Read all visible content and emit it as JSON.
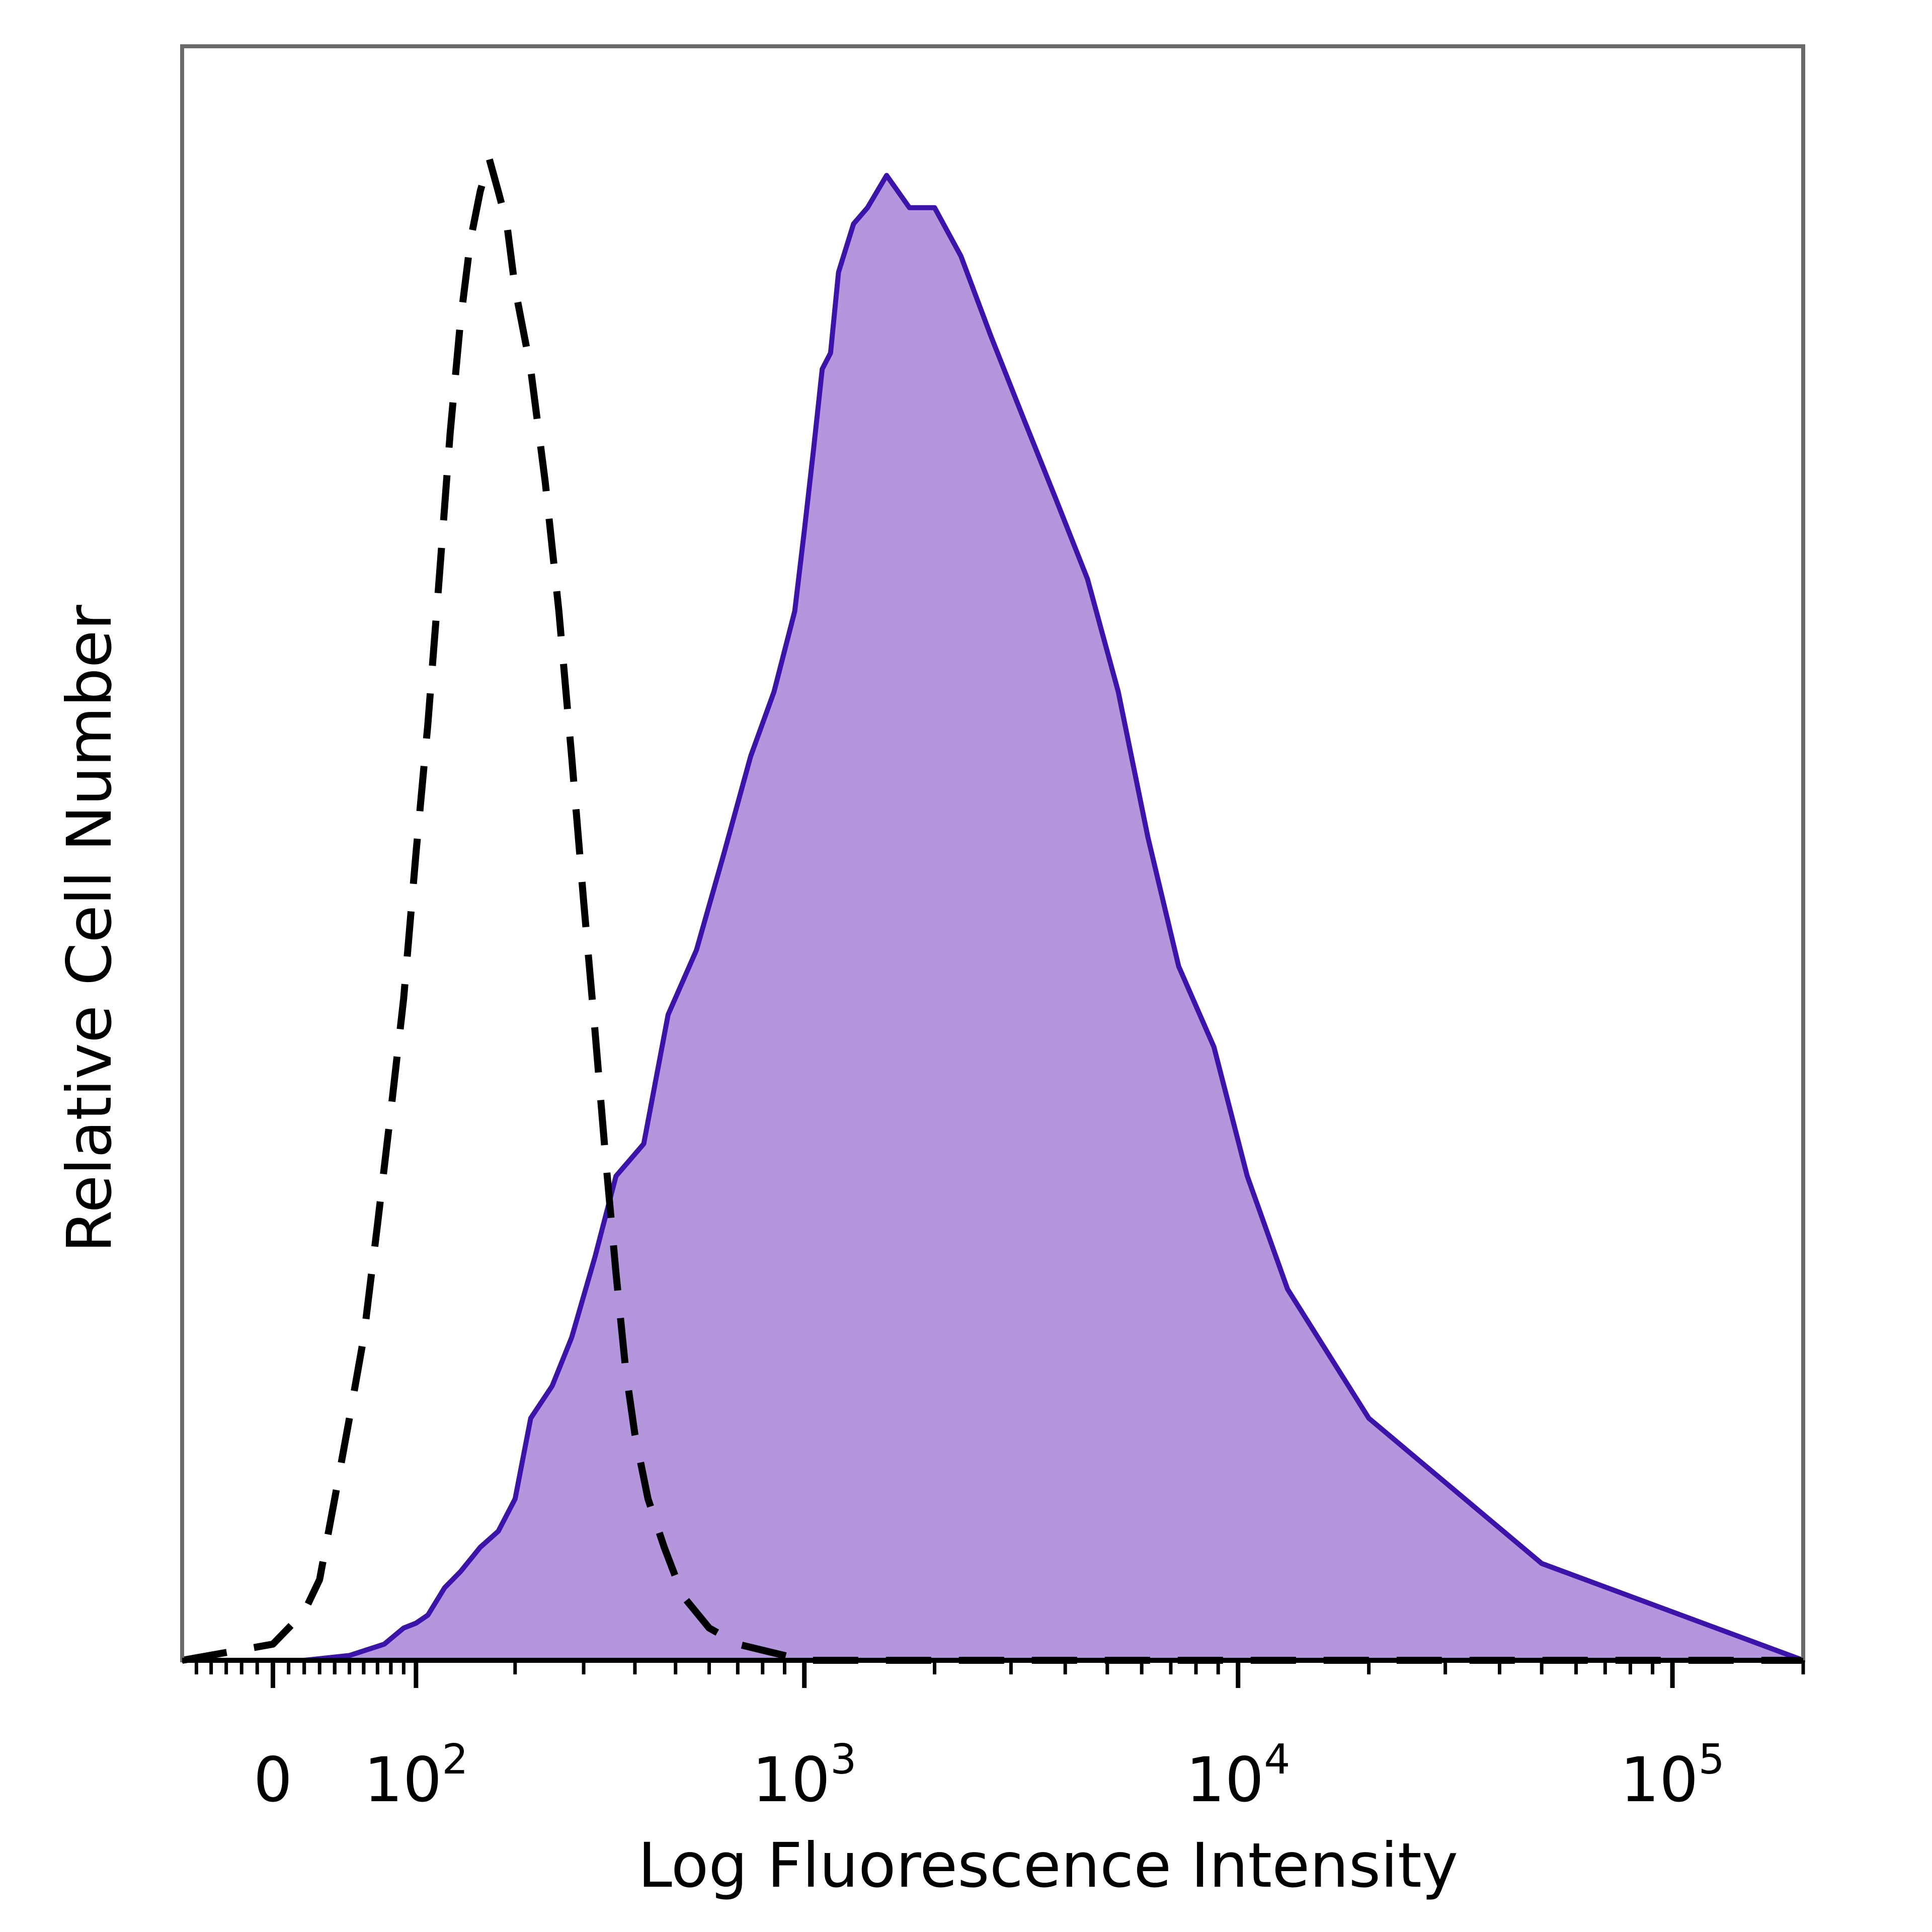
{
  "chart_data": {
    "type": "area",
    "xlabel": "Log Fluorescence Intensity",
    "ylabel": "Relative Cell Number",
    "x_scale": "biexponential",
    "x_ticks": [
      {
        "value": 0,
        "base": "0",
        "exp": ""
      },
      {
        "value": 100,
        "base": "10",
        "exp": "2"
      },
      {
        "value": 1000,
        "base": "10",
        "exp": "3"
      },
      {
        "value": 10000,
        "base": "10",
        "exp": "4"
      },
      {
        "value": 100000,
        "base": "10",
        "exp": "5"
      }
    ],
    "xlim": [
      -60,
      200000
    ],
    "ylim": [
      0,
      1
    ],
    "grid": false,
    "series": [
      {
        "style": "filled",
        "color": "#b496dc",
        "line_color": "#3c14aa",
        "x": [
          -60,
          20,
          50,
          75,
          90,
          100,
          110,
          125,
          140,
          160,
          180,
          200,
          220,
          250,
          280,
          320,
          360,
          420,
          480,
          560,
          650,
          750,
          850,
          950,
          1000,
          1050,
          1100,
          1150,
          1200,
          1300,
          1400,
          1550,
          1750,
          2000,
          2300,
          2700,
          3200,
          3800,
          4500,
          5300,
          6200,
          7300,
          8800,
          10500,
          13000,
          20000,
          50000,
          200000
        ],
        "values": [
          0.0,
          0.0,
          0.003,
          0.01,
          0.02,
          0.023,
          0.028,
          0.045,
          0.055,
          0.07,
          0.08,
          0.1,
          0.15,
          0.17,
          0.2,
          0.25,
          0.3,
          0.32,
          0.4,
          0.44,
          0.5,
          0.56,
          0.6,
          0.65,
          0.7,
          0.75,
          0.8,
          0.81,
          0.86,
          0.89,
          0.9,
          0.92,
          0.9,
          0.9,
          0.87,
          0.82,
          0.77,
          0.72,
          0.67,
          0.6,
          0.51,
          0.43,
          0.38,
          0.3,
          0.23,
          0.15,
          0.06,
          0.0
        ]
      },
      {
        "style": "dashed",
        "color": "#000000",
        "x": [
          -60,
          0,
          20,
          30,
          40,
          50,
          60,
          70,
          80,
          90,
          100,
          110,
          120,
          130,
          140,
          150,
          160,
          170,
          180,
          190,
          200,
          220,
          240,
          260,
          280,
          300,
          320,
          340,
          360,
          380,
          400,
          430,
          470,
          520,
          600,
          700,
          1000,
          200000
        ],
        "values": [
          0.0,
          0.01,
          0.03,
          0.05,
          0.1,
          0.15,
          0.2,
          0.27,
          0.34,
          0.41,
          0.5,
          0.58,
          0.67,
          0.76,
          0.83,
          0.88,
          0.91,
          0.93,
          0.91,
          0.89,
          0.85,
          0.8,
          0.73,
          0.65,
          0.56,
          0.47,
          0.39,
          0.31,
          0.24,
          0.18,
          0.14,
          0.1,
          0.07,
          0.04,
          0.02,
          0.01,
          0.0,
          0.0
        ]
      }
    ]
  }
}
